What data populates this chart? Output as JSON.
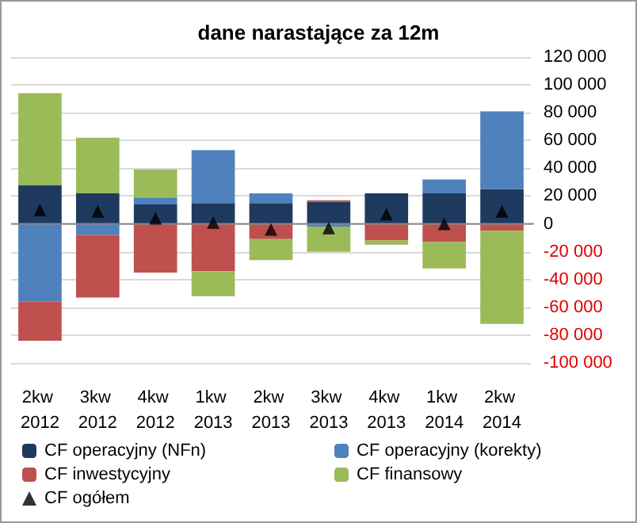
{
  "chart_data": {
    "type": "bar",
    "title": "dane narastające za 12m",
    "stacked": true,
    "categories": [
      "2kw 2012",
      "3kw 2012",
      "4kw 2012",
      "1kw 2013",
      "2kw 2013",
      "3kw 2013",
      "4kw 2013",
      "1kw 2014",
      "2kw 2014"
    ],
    "series": [
      {
        "name": "CF operacyjny (NFn)",
        "color": "#1f3a5f",
        "values": [
          28000,
          22000,
          14000,
          15000,
          15000,
          16000,
          22000,
          22000,
          25000
        ]
      },
      {
        "name": "CF operacyjny (korekty)",
        "color": "#4f81bd",
        "values": [
          -56000,
          -8000,
          5000,
          38000,
          7000,
          -2000,
          0,
          10000,
          56000
        ]
      },
      {
        "name": "CF inwestycyjny",
        "color": "#c0504d",
        "values": [
          -28000,
          -45000,
          -35000,
          -34000,
          -11000,
          1000,
          -12000,
          -13000,
          -5000
        ]
      },
      {
        "name": "CF finansowy",
        "color": "#9bbb59",
        "values": [
          66000,
          40000,
          20000,
          -18000,
          -15000,
          -18000,
          -3000,
          -19000,
          -67000
        ]
      },
      {
        "name": "CF ogółem",
        "type": "scatter",
        "marker": "triangle",
        "color": "#000000",
        "values": [
          10000,
          9000,
          4000,
          1000,
          -4000,
          -3000,
          7000,
          0,
          9000
        ]
      }
    ],
    "ylim": [
      -100000,
      120000
    ],
    "yticks": [
      {
        "value": -100000,
        "label": "-100 000"
      },
      {
        "value": -80000,
        "label": "-80 000"
      },
      {
        "value": -60000,
        "label": "-60 000"
      },
      {
        "value": -40000,
        "label": "-40 000"
      },
      {
        "value": -20000,
        "label": "-20 000"
      },
      {
        "value": 0,
        "label": "0"
      },
      {
        "value": 20000,
        "label": "20 000"
      },
      {
        "value": 40000,
        "label": "40 000"
      },
      {
        "value": 60000,
        "label": "60 000"
      },
      {
        "value": 80000,
        "label": "80 000"
      },
      {
        "value": 100000,
        "label": "100 000"
      },
      {
        "value": 120000,
        "label": "120 000"
      }
    ],
    "grid": "y",
    "legend": "bottom"
  }
}
